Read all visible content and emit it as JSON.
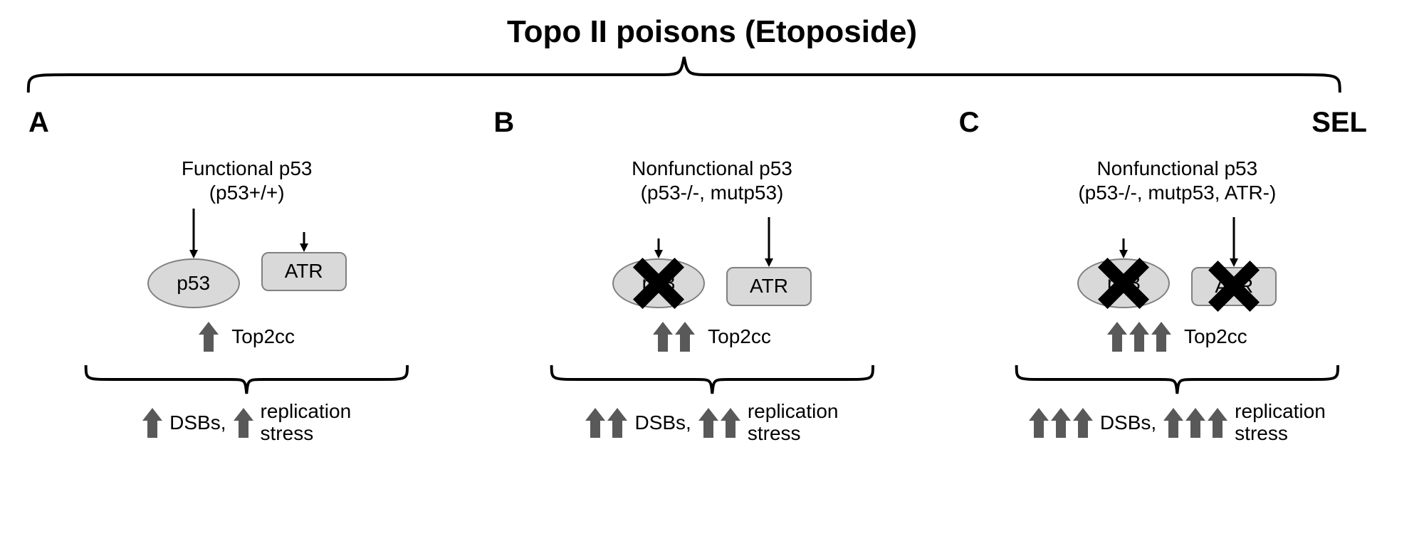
{
  "title": "Topo II poisons (Etoposide)",
  "colors": {
    "bg": "#ffffff",
    "text": "#000000",
    "shape_fill": "#d9d9d9",
    "shape_stroke": "#808080",
    "arrow_fill": "#595959",
    "cross": "#000000",
    "brace": "#000000"
  },
  "fonts": {
    "title_size": 44,
    "panel_letter_size": 40,
    "body_size": 28
  },
  "panels": [
    {
      "letter": "A",
      "extra_label": "",
      "subtitle_line1": "Functional p53",
      "subtitle_line2": "(p53+/+)",
      "p53_crossed": false,
      "atr_crossed": false,
      "p53_arrow_long": true,
      "atr_arrow_long": false,
      "top2cc_arrows": 1,
      "dsb_arrows": 1,
      "repl_arrows": 1
    },
    {
      "letter": "B",
      "extra_label": "",
      "subtitle_line1": "Nonfunctional p53",
      "subtitle_line2": "(p53-/-, mutp53)",
      "p53_crossed": true,
      "atr_crossed": false,
      "p53_arrow_long": false,
      "atr_arrow_long": true,
      "top2cc_arrows": 2,
      "dsb_arrows": 2,
      "repl_arrows": 2
    },
    {
      "letter": "C",
      "extra_label": "SEL",
      "subtitle_line1": "Nonfunctional p53",
      "subtitle_line2": "(p53-/-, mutp53, ATR-)",
      "p53_crossed": true,
      "atr_crossed": true,
      "p53_arrow_long": false,
      "atr_arrow_long": true,
      "top2cc_arrows": 3,
      "dsb_arrows": 3,
      "repl_arrows": 3
    }
  ],
  "labels": {
    "p53": "p53",
    "atr": "ATR",
    "top2cc": "Top2cc",
    "dsbs": "DSBs,",
    "repl_line1": "replication",
    "repl_line2": "stress"
  },
  "shapes": {
    "ellipse_w": 130,
    "ellipse_h": 70,
    "rect_w": 120,
    "rect_h": 55,
    "rect_r": 10,
    "fat_arrow_w": 28,
    "fat_arrow_h": 42,
    "cross_size": 90
  }
}
